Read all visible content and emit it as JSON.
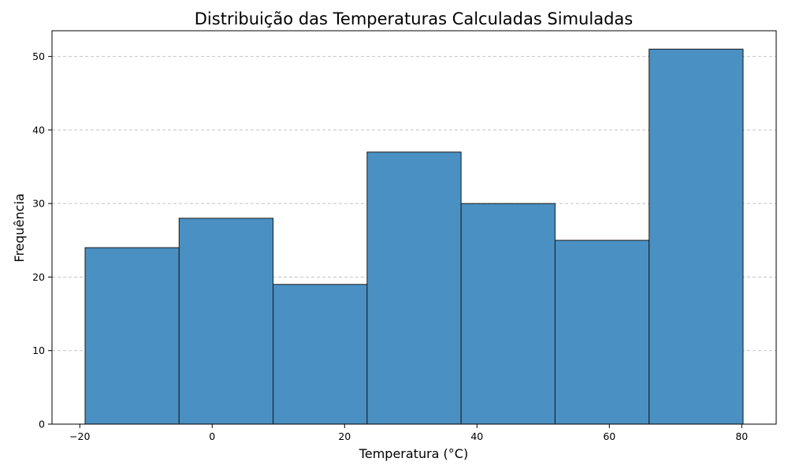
{
  "chart_data": {
    "type": "bar",
    "histogram": true,
    "title": "Distribuição das Temperaturas Calculadas Simuladas",
    "xlabel": "Temperatura (°C)",
    "ylabel": "Frequência",
    "bin_edges": [
      -19.2,
      -5.0,
      9.2,
      23.4,
      37.6,
      51.8,
      66.0,
      80.2
    ],
    "values": [
      24,
      28,
      19,
      37,
      30,
      25,
      51
    ],
    "xlim": [
      -24.2,
      85.2
    ],
    "ylim": [
      0,
      53.5
    ],
    "xticks": [
      -20,
      0,
      20,
      40,
      60,
      80
    ],
    "xtick_labels": [
      "−20",
      "0",
      "20",
      "40",
      "60",
      "80"
    ],
    "yticks": [
      0,
      10,
      20,
      30,
      40,
      50
    ],
    "ytick_labels": [
      "0",
      "10",
      "20",
      "30",
      "40",
      "50"
    ],
    "grid": "y-dashed",
    "bar_color": "#4a90c2",
    "edge_color": "#1a1a1a",
    "grid_color": "#c4c4c4"
  }
}
